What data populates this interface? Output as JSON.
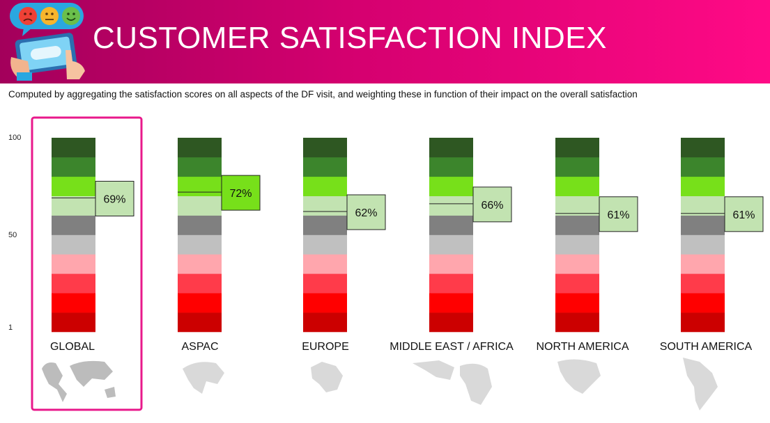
{
  "header": {
    "title": "CUSTOMER SATISFACTION INDEX"
  },
  "subtitle": "Computed by aggregating the satisfaction scores on all aspects of the DF visit, and weighting these in function of their impact on the overall satisfaction",
  "colors": {
    "header_start": "#a3005b",
    "header_end": "#ff0a86",
    "highlight_border": "#e8198b",
    "bands": [
      "#cc0000",
      "#ff0000",
      "#ff3b4a",
      "#ffa6ad",
      "#c0c0c0",
      "#808080",
      "#c2e3b1",
      "#77e01a",
      "#3c852c",
      "#2e5722"
    ],
    "label_fill_default": "#c2e3b1",
    "label_fill_top": "#77e01a"
  },
  "chart_data": {
    "type": "bar",
    "categories": [
      "GLOBAL",
      "ASPAC",
      "EUROPE",
      "MIDDLE EAST / AFRICA",
      "NORTH AMERICA",
      "SOUTH AMERICA"
    ],
    "values": [
      69,
      72,
      62,
      66,
      61,
      61
    ],
    "value_labels": [
      "69%",
      "72%",
      "62%",
      "66%",
      "61%",
      "61%"
    ],
    "ylim": [
      0,
      100
    ],
    "yticks": [
      {
        "value": 100,
        "label": "100"
      },
      {
        "value": 50,
        "label": "50"
      },
      {
        "value": 1,
        "label": "1"
      }
    ],
    "bands": 10,
    "highlighted_category": "GLOBAL",
    "grid": false,
    "legend": "none"
  }
}
